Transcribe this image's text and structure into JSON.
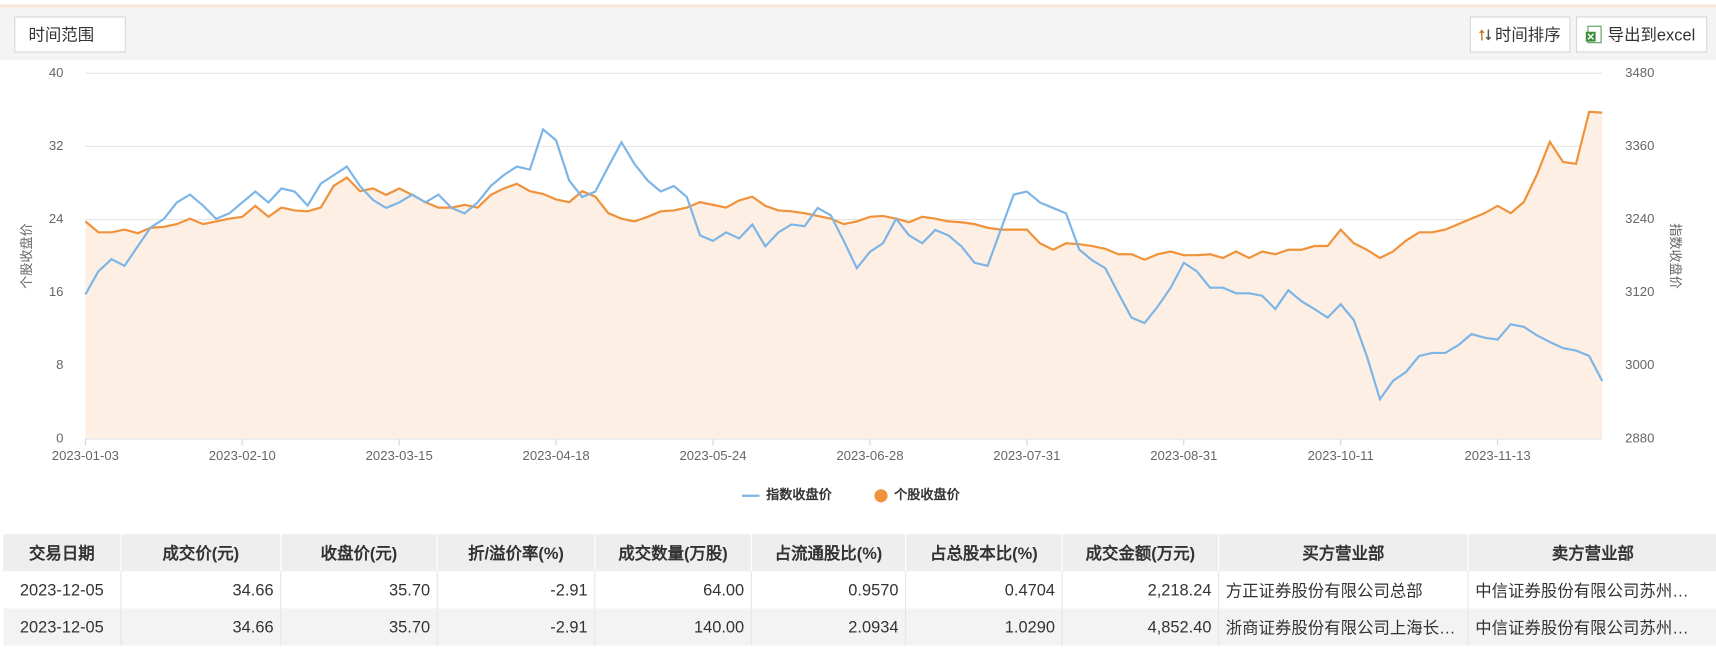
{
  "toolbar": {
    "time_range": "时间范围",
    "sort": "时间排序",
    "export": "导出到excel"
  },
  "chart_data": {
    "type": "line",
    "categories": [
      "2023-01-03",
      null,
      null,
      null,
      null,
      null,
      null,
      null,
      null,
      null,
      null,
      null,
      "2023-02-10",
      null,
      null,
      null,
      null,
      null,
      null,
      null,
      null,
      null,
      null,
      null,
      "2023-03-15",
      null,
      null,
      null,
      null,
      null,
      null,
      null,
      null,
      null,
      null,
      null,
      "2023-04-18",
      null,
      null,
      null,
      null,
      null,
      null,
      null,
      null,
      null,
      null,
      null,
      "2023-05-24",
      null,
      null,
      null,
      null,
      null,
      null,
      null,
      null,
      null,
      null,
      null,
      "2023-06-28",
      null,
      null,
      null,
      null,
      null,
      null,
      null,
      null,
      null,
      null,
      null,
      "2023-07-31",
      null,
      null,
      null,
      null,
      null,
      null,
      null,
      null,
      null,
      null,
      null,
      "2023-08-31",
      null,
      null,
      null,
      null,
      null,
      null,
      null,
      null,
      null,
      null,
      null,
      "2023-10-11",
      null,
      null,
      null,
      null,
      null,
      null,
      null,
      null,
      null,
      null,
      null,
      "2023-11-13",
      null,
      null,
      null,
      null,
      null,
      null,
      null,
      null
    ],
    "series": [
      {
        "name": "指数收盘价",
        "color": "#7cb5e6",
        "axis": "y2",
        "values": [
          3117,
          3155,
          3175,
          3164,
          3196,
          3227,
          3241,
          3268,
          3281,
          3263,
          3241,
          3250,
          3268,
          3286,
          3268,
          3291,
          3286,
          3263,
          3299,
          3313,
          3327,
          3295,
          3272,
          3259,
          3268,
          3281,
          3268,
          3281,
          3259,
          3250,
          3268,
          3295,
          3313,
          3327,
          3322,
          3388,
          3370,
          3304,
          3277,
          3286,
          3327,
          3367,
          3331,
          3304,
          3286,
          3295,
          3277,
          3214,
          3205,
          3219,
          3209,
          3232,
          3196,
          3219,
          3232,
          3229,
          3259,
          3247,
          3205,
          3160,
          3187,
          3201,
          3241,
          3214,
          3201,
          3223,
          3214,
          3196,
          3169,
          3164,
          3223,
          3281,
          3286,
          3268,
          3259,
          3250,
          3191,
          3173,
          3160,
          3119,
          3079,
          3070,
          3097,
          3128,
          3169,
          3155,
          3128,
          3128,
          3119,
          3119,
          3115,
          3093,
          3124,
          3106,
          3093,
          3079,
          3101,
          3075,
          3016,
          2945,
          2975,
          2990,
          3016,
          3021,
          3021,
          3034,
          3052,
          3046,
          3043,
          3068,
          3064,
          3050,
          3039,
          3029,
          3025,
          3016,
          2975
        ]
      },
      {
        "name": "个股收盘价",
        "color": "#f0923a",
        "area_color": "#fdefe4",
        "values": [
          23.8,
          22.6,
          22.6,
          22.9,
          22.5,
          23.1,
          23.2,
          23.5,
          24.1,
          23.5,
          23.8,
          24.1,
          24.3,
          25.5,
          24.3,
          25.3,
          25.0,
          24.9,
          25.3,
          27.7,
          28.6,
          27.1,
          27.4,
          26.7,
          27.4,
          26.7,
          25.9,
          25.3,
          25.3,
          25.6,
          25.3,
          26.7,
          27.4,
          27.9,
          27.1,
          26.8,
          26.2,
          25.9,
          27.1,
          26.5,
          24.7,
          24.1,
          23.8,
          24.3,
          24.9,
          25.0,
          25.3,
          25.9,
          25.6,
          25.3,
          26.1,
          26.5,
          25.5,
          25.0,
          24.9,
          24.7,
          24.4,
          24.1,
          23.5,
          23.8,
          24.3,
          24.4,
          24.1,
          23.7,
          24.3,
          24.1,
          23.8,
          23.7,
          23.5,
          23.1,
          22.9,
          22.9,
          22.9,
          21.4,
          20.7,
          21.4,
          21.3,
          21.1,
          20.8,
          20.2,
          20.2,
          19.6,
          20.2,
          20.5,
          20.1,
          20.1,
          20.2,
          19.8,
          20.5,
          19.8,
          20.5,
          20.2,
          20.7,
          20.7,
          21.1,
          21.1,
          22.9,
          21.4,
          20.7,
          19.8,
          20.5,
          21.7,
          22.6,
          22.6,
          22.9,
          23.5,
          24.1,
          24.7,
          25.5,
          24.7,
          25.9,
          28.9,
          32.5,
          30.3,
          30.1,
          35.8,
          35.7
        ]
      }
    ],
    "ylabel": "个股收盘价",
    "y2label": "指数收盘价",
    "ylim": [
      0,
      40
    ],
    "yticks": [
      0,
      8,
      16,
      24,
      32,
      40
    ],
    "y2lim": [
      2880,
      3480
    ],
    "y2ticks": [
      2880,
      3000,
      3120,
      3240,
      3360,
      3480
    ],
    "grid": true,
    "legend": "bottom"
  },
  "table": {
    "headers": [
      "交易日期",
      "成交价(元)",
      "收盘价(元)",
      "折/溢价率(%)",
      "成交数量(万股)",
      "占流通股比(%)",
      "占总股本比(%)",
      "成交金额(万元)",
      "买方营业部",
      "卖方营业部"
    ],
    "rows": [
      [
        "2023-12-05",
        "34.66",
        "35.70",
        "-2.91",
        "64.00",
        "0.9570",
        "0.4704",
        "2,218.24",
        "方正证券股份有限公司总部",
        "中信证券股份有限公司苏州…"
      ],
      [
        "2023-12-05",
        "34.66",
        "35.70",
        "-2.91",
        "140.00",
        "2.0934",
        "1.0290",
        "4,852.40",
        "浙商证券股份有限公司上海长…",
        "中信证券股份有限公司苏州…"
      ]
    ]
  }
}
